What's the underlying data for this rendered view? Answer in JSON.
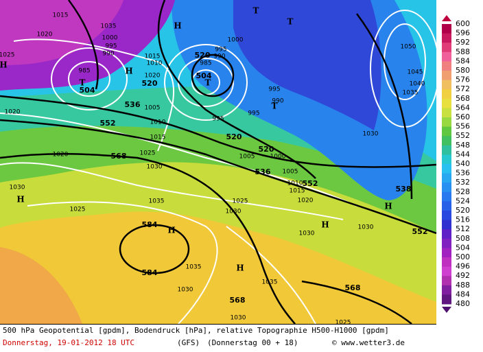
{
  "legend": {
    "labels": [
      "600",
      "596",
      "592",
      "588",
      "584",
      "580",
      "576",
      "572",
      "568",
      "564",
      "560",
      "556",
      "552",
      "548",
      "544",
      "540",
      "536",
      "532",
      "528",
      "524",
      "520",
      "516",
      "512",
      "508",
      "504",
      "500",
      "496",
      "492",
      "488",
      "484",
      "480"
    ],
    "colors": [
      "#b0004a",
      "#c8185e",
      "#e03c78",
      "#f0609a",
      "#f08080",
      "#f0a070",
      "#f0c060",
      "#f0d040",
      "#e8e040",
      "#c8e040",
      "#98d840",
      "#60c840",
      "#40c060",
      "#30c0a0",
      "#28c8d0",
      "#28c0f0",
      "#28a8f0",
      "#2890f0",
      "#2878f0",
      "#2860e8",
      "#2848e0",
      "#3030d0",
      "#6020c8",
      "#8020c0",
      "#a020c0",
      "#c030c0",
      "#d040d0",
      "#b030b0",
      "#8020a0",
      "#601880"
    ]
  },
  "pressure_labels": [
    "1015",
    "1020",
    "1025",
    "1035",
    "1000",
    "995",
    "990",
    "985",
    "1015",
    "1010",
    "1020",
    "995",
    "990",
    "985",
    "1000",
    "1005",
    "1010",
    "1015",
    "1025",
    "1030",
    "1020",
    "1020",
    "1030",
    "1025",
    "1035",
    "1025",
    "1030",
    "1005",
    "1000",
    "1005",
    "1010",
    "1015",
    "1020",
    "995",
    "990",
    "995",
    "995",
    "1030",
    "1050",
    "1045",
    "1040",
    "1035",
    "1030",
    "1030",
    "1035",
    "1035",
    "1030",
    "1030",
    "1025"
  ],
  "geopotential_labels": [
    "504",
    "520",
    "520",
    "504",
    "536",
    "552",
    "568",
    "520",
    "520",
    "536",
    "552",
    "538",
    "552",
    "584",
    "584",
    "568",
    "568"
  ],
  "centers": [
    "H",
    "T",
    "H",
    "H",
    "T",
    "T",
    "T",
    "T",
    "H",
    "H",
    "H",
    "H",
    "H"
  ],
  "caption": {
    "line1": "500 hPa Geopotential [gpdm], Bodendruck [hPa], relative Topographie H500-H1000 [gpdm]",
    "date": "Donnerstag, 19-01-2012  18 UTC",
    "model": "(GFS)",
    "run": "(Donnerstag 00 + 18)",
    "source": "© www.wetter3.de"
  }
}
